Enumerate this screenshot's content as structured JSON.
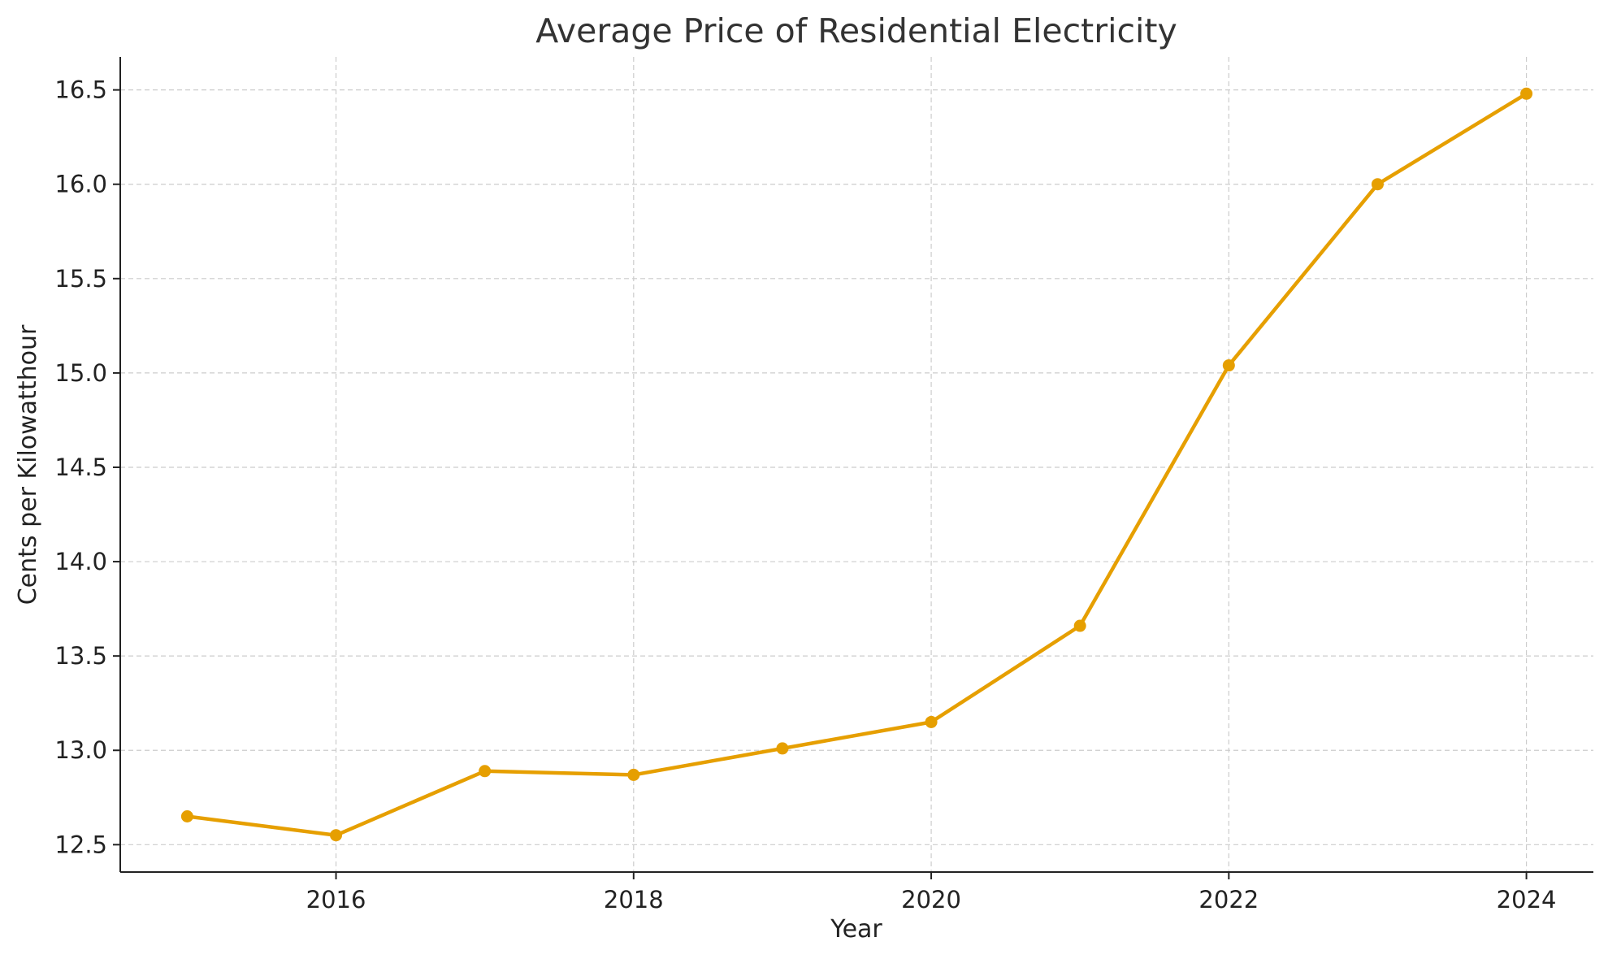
{
  "chart_data": {
    "type": "line",
    "title": "Average Price of Residential Electricity",
    "xlabel": "Year",
    "ylabel": "Cents per Kilowatthour",
    "x": [
      2015,
      2016,
      2017,
      2018,
      2019,
      2020,
      2021,
      2022,
      2023,
      2024
    ],
    "series": [
      {
        "values": [
          12.65,
          12.55,
          12.89,
          12.87,
          13.01,
          13.15,
          13.66,
          15.04,
          16.0,
          16.48
        ],
        "color": "#E69F00",
        "marker": "circle"
      }
    ],
    "xlim": [
      2014.55,
      2024.45
    ],
    "ylim": [
      12.355,
      16.675
    ],
    "xticks": [
      2016,
      2018,
      2020,
      2022,
      2024
    ],
    "xtick_labels": [
      "2016",
      "2018",
      "2020",
      "2022",
      "2024"
    ],
    "yticks": [
      12.5,
      13.0,
      13.5,
      14.0,
      14.5,
      15.0,
      15.5,
      16.0,
      16.5
    ],
    "ytick_labels": [
      "12.5",
      "13.0",
      "13.5",
      "14.0",
      "14.5",
      "15.0",
      "15.5",
      "16.0",
      "16.5"
    ],
    "grid": true,
    "grid_style": "dashed",
    "grid_color": "#cccccc",
    "axis_color": "#222222"
  }
}
